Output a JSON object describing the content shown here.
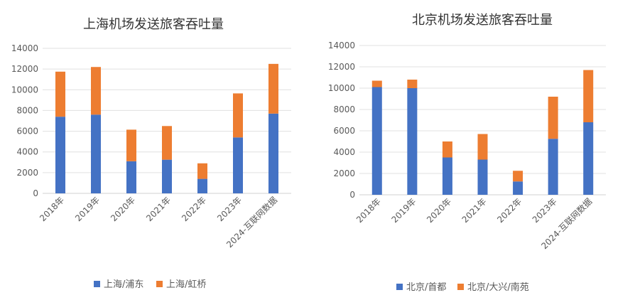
{
  "chart_data": [
    {
      "type": "bar",
      "stacked": true,
      "title": "上海机场发送旅客吞吐量",
      "categories": [
        "2018年",
        "2019年",
        "2020年",
        "2021年",
        "2022年",
        "2023年",
        "2024-互联网数据"
      ],
      "series": [
        {
          "name": "上海/浦东",
          "color": "#4472C4",
          "values": [
            7400,
            7600,
            3100,
            3250,
            1400,
            5400,
            7700
          ]
        },
        {
          "name": "上海/虹桥",
          "color": "#ED7D31",
          "values": [
            4350,
            4600,
            3050,
            3250,
            1500,
            4250,
            4800
          ]
        }
      ],
      "ylim": [
        0,
        14000
      ],
      "yticks": [
        "0",
        "2000",
        "4000",
        "6000",
        "8000",
        "10000",
        "12000",
        "14000"
      ],
      "grid": true,
      "legend": "bottom"
    },
    {
      "type": "bar",
      "stacked": true,
      "title": "北京机场发送旅客吞吐量",
      "categories": [
        "2018年",
        "2019年",
        "2020年",
        "2021年",
        "2022年",
        "2023年",
        "2024-互联网数据"
      ],
      "series": [
        {
          "name": "北京/首都",
          "color": "#4472C4",
          "values": [
            10100,
            10000,
            3500,
            3300,
            1250,
            5250,
            6800
          ]
        },
        {
          "name": "北京/大兴/南苑",
          "color": "#ED7D31",
          "values": [
            600,
            800,
            1500,
            2400,
            1000,
            3950,
            4900
          ]
        }
      ],
      "ylim": [
        0,
        14000
      ],
      "yticks": [
        "0",
        "2000",
        "4000",
        "6000",
        "8000",
        "10000",
        "12000",
        "14000"
      ],
      "grid": true,
      "legend": "bottom"
    }
  ]
}
